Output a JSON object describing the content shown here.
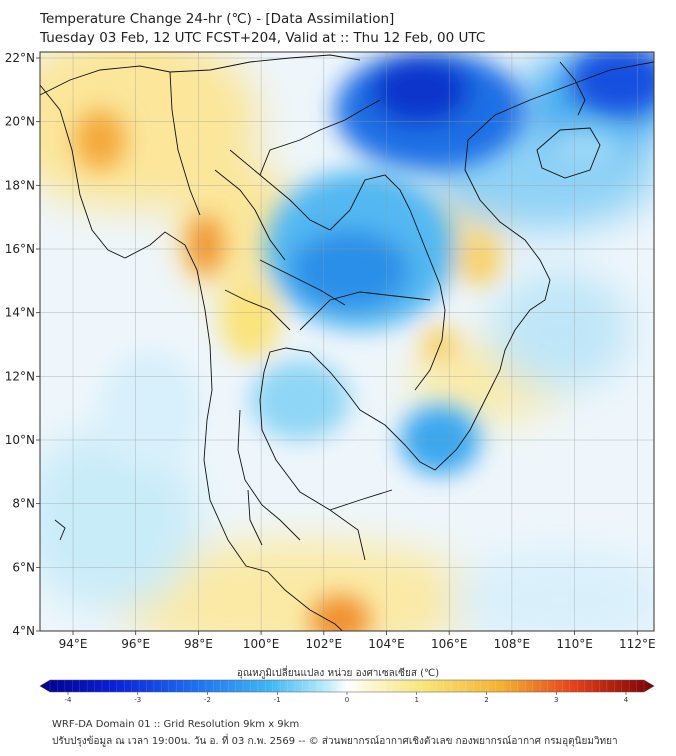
{
  "title_line1": "Temperature Change 24-hr (℃) - [Data Assimilation]",
  "title_line2": "Tuesday 03 Feb, 12 UTC FCST+204, Valid at :: Thu 12 Feb, 00 UTC",
  "lat_labels": [
    "22°N",
    "20°N",
    "18°N",
    "16°N",
    "14°N",
    "12°N",
    "10°N",
    "8°N",
    "6°N",
    "4°N"
  ],
  "lon_labels": [
    "94°E",
    "96°E",
    "98°E",
    "100°E",
    "102°E",
    "104°E",
    "106°E",
    "108°E",
    "110°E",
    "112°E"
  ],
  "colorbar": {
    "label": "อุณหภูมิเปลี่ยนแปลง หน่วย องศาเซลเซียส (℃)",
    "ticks": [
      "-4",
      "-3",
      "-2",
      "-1",
      "0",
      "1",
      "2",
      "3",
      "4"
    ],
    "min": -4,
    "max": 4,
    "colors": [
      "#0000a0",
      "#0010d8",
      "#1050f0",
      "#2a8ff0",
      "#4fc8f5",
      "#aeeafa",
      "#f2f6ff",
      "#fcf7d6",
      "#f8e68a",
      "#f5c845",
      "#f29a28",
      "#e8461a",
      "#c41a10",
      "#8c0008"
    ]
  },
  "footer_line1": "WRF-DA Domain 01 :: Grid Resolution 9km x 9km",
  "footer_line2": "ปรับปรุงข้อมูล ณ เวลา 19:00น. วัน อ. ที่ 03 ก.พ. 2569 -- © ส่วนพยากรณ์อากาศเชิงตัวเลข กองพยากรณ์อากาศ กรมอุตุนิยมวิทยา"
}
